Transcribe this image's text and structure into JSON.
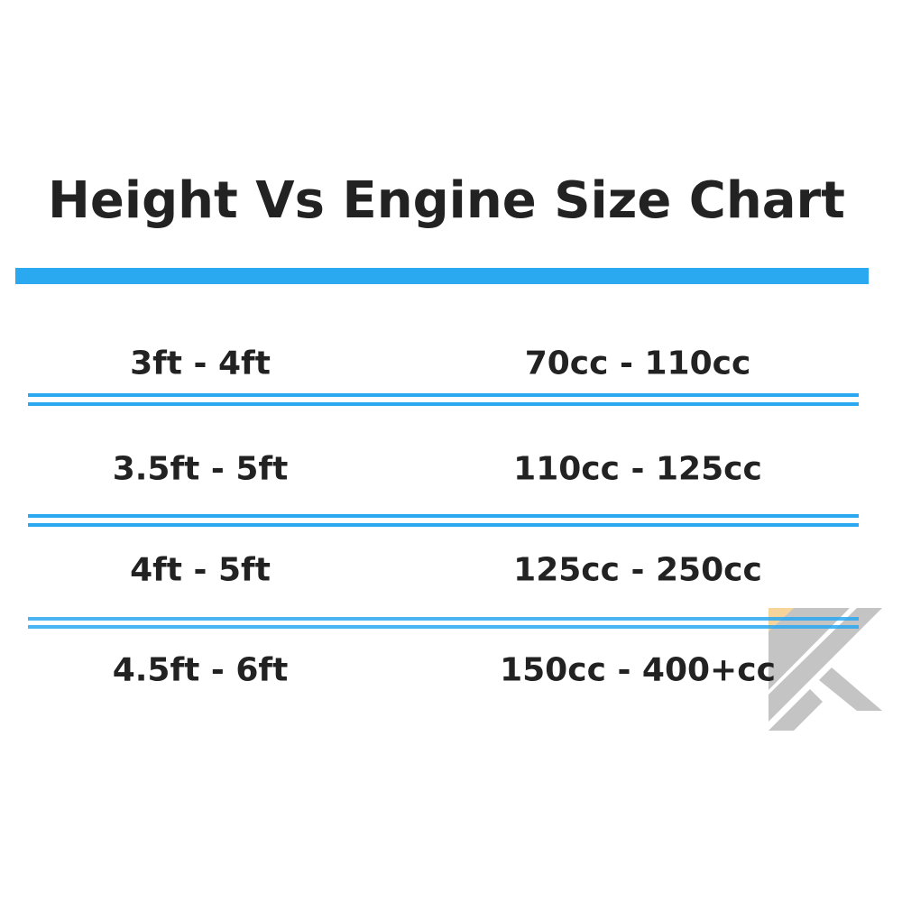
{
  "chart_data": {
    "type": "table",
    "title": "Height Vs Engine Size Chart",
    "rows": [
      [
        "3ft - 4ft",
        "70cc - 110cc"
      ],
      [
        "3.5ft - 5ft",
        "110cc - 125cc"
      ],
      [
        "4ft - 5ft",
        "125cc - 250cc"
      ],
      [
        "4.5ft - 6ft",
        "150cc - 400+cc"
      ]
    ],
    "colors": {
      "accent": "#2aa8f0",
      "text": "#222222",
      "logo": "#c4c4c4",
      "logo_accent": "#f6d49a"
    }
  },
  "logo": {
    "icon": "k-logo-watermark"
  }
}
